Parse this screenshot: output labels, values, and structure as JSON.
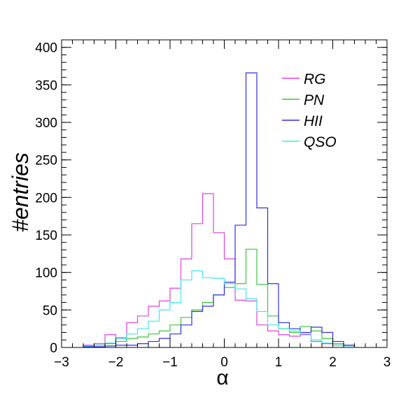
{
  "chart_data": {
    "type": "histogram",
    "xlabel": "α",
    "ylabel": "#entries",
    "xlim": [
      -3,
      3
    ],
    "ylim": [
      0,
      410
    ],
    "bin_width": 0.2,
    "x_ticks": [
      "−3",
      "−2",
      "−1",
      "0",
      "1",
      "2",
      "3"
    ],
    "x_tick_values": [
      -3,
      -2,
      -1,
      0,
      1,
      2,
      3
    ],
    "y_ticks": [
      "0",
      "50",
      "100",
      "150",
      "200",
      "250",
      "300",
      "350",
      "400"
    ],
    "y_tick_values": [
      0,
      50,
      100,
      150,
      200,
      250,
      300,
      350,
      400
    ],
    "grid": false,
    "legend_position": "top-right",
    "series": [
      {
        "name": "RG",
        "color": "#e040e0",
        "bins": [
          {
            "x0": -2.6,
            "x1": -2.4,
            "y": 3
          },
          {
            "x0": -2.4,
            "x1": -2.2,
            "y": 5
          },
          {
            "x0": -2.2,
            "x1": -2.0,
            "y": 17
          },
          {
            "x0": -2.0,
            "x1": -1.8,
            "y": 13
          },
          {
            "x0": -1.8,
            "x1": -1.6,
            "y": 33
          },
          {
            "x0": -1.6,
            "x1": -1.4,
            "y": 42
          },
          {
            "x0": -1.4,
            "x1": -1.2,
            "y": 55
          },
          {
            "x0": -1.2,
            "x1": -1.0,
            "y": 62
          },
          {
            "x0": -1.0,
            "x1": -0.8,
            "y": 79
          },
          {
            "x0": -0.8,
            "x1": -0.6,
            "y": 118
          },
          {
            "x0": -0.6,
            "x1": -0.4,
            "y": 165
          },
          {
            "x0": -0.4,
            "x1": -0.2,
            "y": 205
          },
          {
            "x0": -0.2,
            "x1": 0.0,
            "y": 153
          },
          {
            "x0": 0.0,
            "x1": 0.2,
            "y": 118
          },
          {
            "x0": 0.2,
            "x1": 0.4,
            "y": 63
          },
          {
            "x0": 0.4,
            "x1": 0.6,
            "y": 62
          },
          {
            "x0": 0.6,
            "x1": 0.8,
            "y": 30
          },
          {
            "x0": 0.8,
            "x1": 1.0,
            "y": 22
          },
          {
            "x0": 1.0,
            "x1": 1.2,
            "y": 17
          },
          {
            "x0": 1.2,
            "x1": 1.4,
            "y": 15
          },
          {
            "x0": 1.4,
            "x1": 1.6,
            "y": 17
          },
          {
            "x0": 1.6,
            "x1": 1.8,
            "y": 8
          },
          {
            "x0": 1.8,
            "x1": 2.0,
            "y": 5
          },
          {
            "x0": 2.0,
            "x1": 2.2,
            "y": 3
          },
          {
            "x0": 2.2,
            "x1": 2.4,
            "y": 2
          }
        ]
      },
      {
        "name": "PN",
        "color": "#3cc43c",
        "bins": [
          {
            "x0": -2.6,
            "x1": -2.4,
            "y": 2
          },
          {
            "x0": -2.4,
            "x1": -2.2,
            "y": 3
          },
          {
            "x0": -2.2,
            "x1": -2.0,
            "y": 5
          },
          {
            "x0": -2.0,
            "x1": -1.8,
            "y": 8
          },
          {
            "x0": -1.8,
            "x1": -1.6,
            "y": 12
          },
          {
            "x0": -1.6,
            "x1": -1.4,
            "y": 14
          },
          {
            "x0": -1.4,
            "x1": -1.2,
            "y": 18
          },
          {
            "x0": -1.2,
            "x1": -1.0,
            "y": 22
          },
          {
            "x0": -1.0,
            "x1": -0.8,
            "y": 30
          },
          {
            "x0": -0.8,
            "x1": -0.6,
            "y": 40
          },
          {
            "x0": -0.6,
            "x1": -0.4,
            "y": 50
          },
          {
            "x0": -0.4,
            "x1": -0.2,
            "y": 60
          },
          {
            "x0": -0.2,
            "x1": 0.0,
            "y": 70
          },
          {
            "x0": 0.0,
            "x1": 0.2,
            "y": 80
          },
          {
            "x0": 0.2,
            "x1": 0.4,
            "y": 85
          },
          {
            "x0": 0.4,
            "x1": 0.6,
            "y": 131
          },
          {
            "x0": 0.6,
            "x1": 0.8,
            "y": 84
          },
          {
            "x0": 0.8,
            "x1": 1.0,
            "y": 42
          },
          {
            "x0": 1.0,
            "x1": 1.2,
            "y": 25
          },
          {
            "x0": 1.2,
            "x1": 1.4,
            "y": 20
          },
          {
            "x0": 1.4,
            "x1": 1.6,
            "y": 28
          },
          {
            "x0": 1.6,
            "x1": 1.8,
            "y": 22
          },
          {
            "x0": 1.8,
            "x1": 2.0,
            "y": 12
          },
          {
            "x0": 2.0,
            "x1": 2.2,
            "y": 5
          },
          {
            "x0": 2.2,
            "x1": 2.4,
            "y": 3
          }
        ]
      },
      {
        "name": "HII",
        "color": "#3030e0",
        "bins": [
          {
            "x0": -2.6,
            "x1": -2.4,
            "y": 1
          },
          {
            "x0": -2.4,
            "x1": -2.2,
            "y": 1
          },
          {
            "x0": -2.2,
            "x1": -2.0,
            "y": 2
          },
          {
            "x0": -2.0,
            "x1": -1.8,
            "y": 3
          },
          {
            "x0": -1.8,
            "x1": -1.6,
            "y": 3
          },
          {
            "x0": -1.6,
            "x1": -1.4,
            "y": 5
          },
          {
            "x0": -1.4,
            "x1": -1.2,
            "y": 8
          },
          {
            "x0": -1.2,
            "x1": -1.0,
            "y": 12
          },
          {
            "x0": -1.0,
            "x1": -0.8,
            "y": 18
          },
          {
            "x0": -0.8,
            "x1": -0.6,
            "y": 30
          },
          {
            "x0": -0.6,
            "x1": -0.4,
            "y": 48
          },
          {
            "x0": -0.4,
            "x1": -0.2,
            "y": 55
          },
          {
            "x0": -0.2,
            "x1": 0.0,
            "y": 70
          },
          {
            "x0": 0.0,
            "x1": 0.2,
            "y": 87
          },
          {
            "x0": 0.2,
            "x1": 0.4,
            "y": 163
          },
          {
            "x0": 0.4,
            "x1": 0.6,
            "y": 366
          },
          {
            "x0": 0.6,
            "x1": 0.8,
            "y": 186
          },
          {
            "x0": 0.8,
            "x1": 1.0,
            "y": 85
          },
          {
            "x0": 1.0,
            "x1": 1.2,
            "y": 33
          },
          {
            "x0": 1.2,
            "x1": 1.4,
            "y": 25
          },
          {
            "x0": 1.4,
            "x1": 1.6,
            "y": 20
          },
          {
            "x0": 1.6,
            "x1": 1.8,
            "y": 27
          },
          {
            "x0": 1.8,
            "x1": 2.0,
            "y": 20
          },
          {
            "x0": 2.0,
            "x1": 2.2,
            "y": 8
          },
          {
            "x0": 2.2,
            "x1": 2.4,
            "y": 3
          }
        ]
      },
      {
        "name": "QSO",
        "color": "#40e8e8",
        "bins": [
          {
            "x0": -2.6,
            "x1": -2.4,
            "y": 2
          },
          {
            "x0": -2.4,
            "x1": -2.2,
            "y": 3
          },
          {
            "x0": -2.2,
            "x1": -2.0,
            "y": 6
          },
          {
            "x0": -2.0,
            "x1": -1.8,
            "y": 12
          },
          {
            "x0": -1.8,
            "x1": -1.6,
            "y": 18
          },
          {
            "x0": -1.6,
            "x1": -1.4,
            "y": 25
          },
          {
            "x0": -1.4,
            "x1": -1.2,
            "y": 35
          },
          {
            "x0": -1.2,
            "x1": -1.0,
            "y": 50
          },
          {
            "x0": -1.0,
            "x1": -0.8,
            "y": 60
          },
          {
            "x0": -0.8,
            "x1": -0.6,
            "y": 90
          },
          {
            "x0": -0.6,
            "x1": -0.4,
            "y": 102
          },
          {
            "x0": -0.4,
            "x1": -0.2,
            "y": 93
          },
          {
            "x0": -0.2,
            "x1": 0.0,
            "y": 92
          },
          {
            "x0": 0.0,
            "x1": 0.2,
            "y": 85
          },
          {
            "x0": 0.2,
            "x1": 0.4,
            "y": 78
          },
          {
            "x0": 0.4,
            "x1": 0.6,
            "y": 65
          },
          {
            "x0": 0.6,
            "x1": 0.8,
            "y": 48
          },
          {
            "x0": 0.8,
            "x1": 1.0,
            "y": 30
          },
          {
            "x0": 1.0,
            "x1": 1.2,
            "y": 25
          },
          {
            "x0": 1.2,
            "x1": 1.4,
            "y": 22
          },
          {
            "x0": 1.4,
            "x1": 1.6,
            "y": 18
          },
          {
            "x0": 1.6,
            "x1": 1.8,
            "y": 10
          },
          {
            "x0": 1.8,
            "x1": 2.0,
            "y": 6
          },
          {
            "x0": 2.0,
            "x1": 2.2,
            "y": 3
          },
          {
            "x0": 2.2,
            "x1": 2.4,
            "y": 2
          }
        ]
      }
    ]
  }
}
